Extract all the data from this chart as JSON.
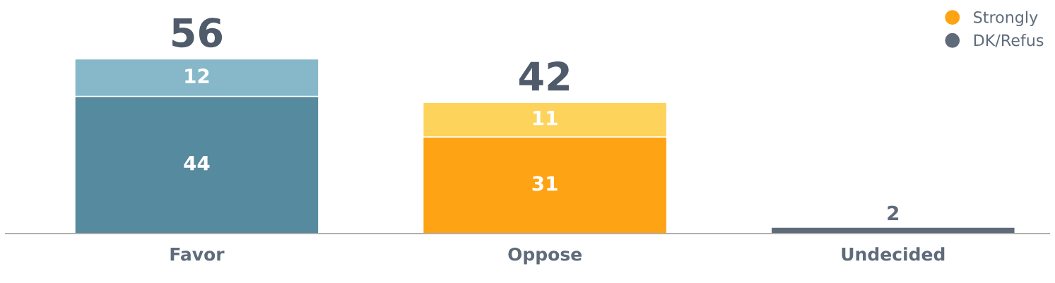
{
  "chart_data": {
    "type": "bar",
    "stacked": true,
    "categories": [
      "Favor",
      "Oppose",
      "Undecided"
    ],
    "series": [
      {
        "color": "#568a9e",
        "values": [
          44,
          null,
          null
        ]
      },
      {
        "color": "#86b8ca",
        "values": [
          12,
          null,
          null
        ]
      },
      {
        "name": "Strongly",
        "color": "#fea314",
        "values": [
          null,
          31,
          null
        ]
      },
      {
        "color": "#fed35c",
        "values": [
          null,
          11,
          null
        ]
      },
      {
        "name": "DK/Refus",
        "color": "#5f6b7a",
        "values": [
          null,
          null,
          2
        ]
      }
    ],
    "data_labels": true,
    "totals": [
      "56",
      "42",
      null
    ],
    "legend": "top right",
    "grid": false
  }
}
